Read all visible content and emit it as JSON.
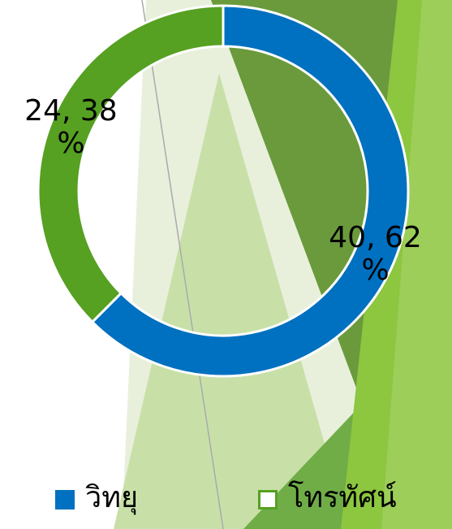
{
  "chart_data": {
    "type": "pie",
    "donut": true,
    "categories": [
      "วิทยุ",
      "โทรทัศน์"
    ],
    "values": [
      40,
      24
    ],
    "value_labels": [
      "40, 62 %",
      "24, 38 %"
    ],
    "colors": [
      "#0070c0",
      "#56a022"
    ],
    "legend": "bottom"
  }
}
